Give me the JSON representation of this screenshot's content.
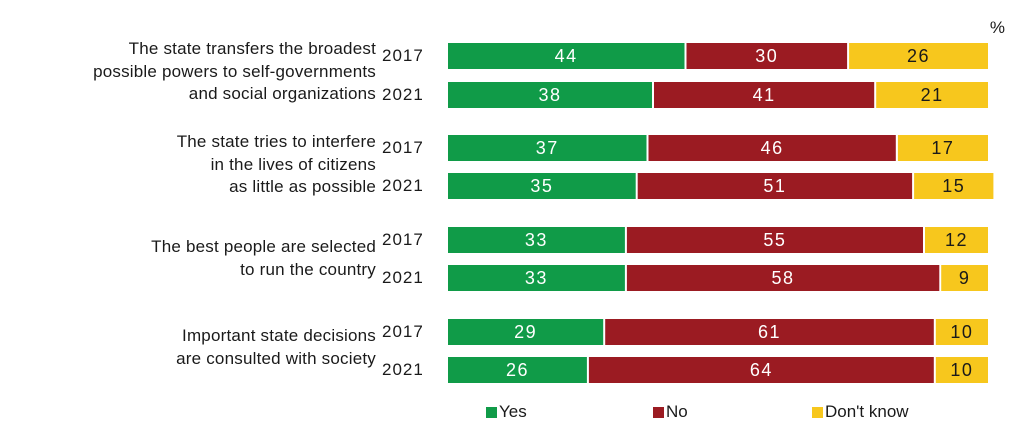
{
  "unit": "%",
  "colors": {
    "yes": "#109b48",
    "no": "#9b1b22",
    "dontknow": "#f7c71d"
  },
  "legend": [
    {
      "key": "yes",
      "label": "Yes"
    },
    {
      "key": "no",
      "label": "No"
    },
    {
      "key": "dontknow",
      "label": "Don't know"
    }
  ],
  "chart_data": {
    "type": "bar",
    "orientation": "horizontal",
    "stacked": true,
    "xlim": [
      0,
      100
    ],
    "grid": false,
    "legend_position": "bottom",
    "series": [
      {
        "name": "Yes",
        "key": "yes"
      },
      {
        "name": "No",
        "key": "no"
      },
      {
        "name": "Don't know",
        "key": "dontknow"
      }
    ],
    "groups": [
      {
        "label": "The state transfers the broadest\npossible powers to self-governments\nand social organizations",
        "rows": [
          {
            "year": "2017",
            "values": [
              44,
              30,
              26
            ]
          },
          {
            "year": "2021",
            "values": [
              38,
              41,
              21
            ]
          }
        ]
      },
      {
        "label": "The state tries to interfere\nin the lives of citizens\nas little as possible",
        "rows": [
          {
            "year": "2017",
            "values": [
              37,
              46,
              17
            ]
          },
          {
            "year": "2021",
            "values": [
              35,
              51,
              15
            ]
          }
        ]
      },
      {
        "label": "The best people are selected\nto run the country",
        "rows": [
          {
            "year": "2017",
            "values": [
              33,
              55,
              12
            ]
          },
          {
            "year": "2021",
            "values": [
              33,
              58,
              9
            ]
          }
        ]
      },
      {
        "label": "Important state decisions\nare consulted with society",
        "rows": [
          {
            "year": "2017",
            "values": [
              29,
              61,
              10
            ]
          },
          {
            "year": "2021",
            "values": [
              26,
              64,
              10
            ]
          }
        ]
      }
    ]
  }
}
